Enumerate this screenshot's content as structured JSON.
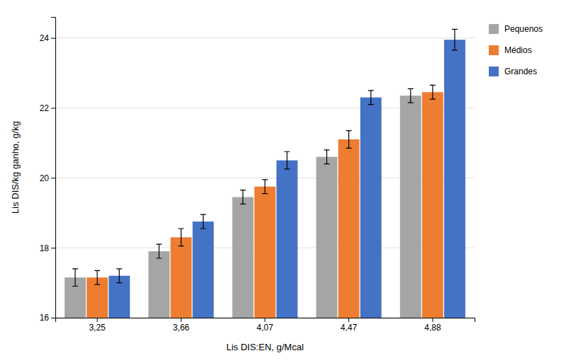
{
  "chart_data": {
    "type": "bar",
    "xlabel": "Lis DIS:EN, g/Mcal",
    "ylabel": "Lis DIS/kg ganho, g/kg",
    "categories": [
      "3,25",
      "3,66",
      "4,07",
      "4,47",
      "4,88"
    ],
    "series": [
      {
        "name": "Pequenos",
        "color": "#a5a5a5",
        "values": [
          17.15,
          17.9,
          19.45,
          20.6,
          22.35
        ],
        "errors": [
          0.25,
          0.2,
          0.2,
          0.2,
          0.2
        ]
      },
      {
        "name": "Médios",
        "color": "#ed7d31",
        "values": [
          17.15,
          18.3,
          19.75,
          21.1,
          22.45
        ],
        "errors": [
          0.2,
          0.25,
          0.2,
          0.25,
          0.2
        ]
      },
      {
        "name": "Grandes",
        "color": "#4472c4",
        "values": [
          17.2,
          18.75,
          20.5,
          22.3,
          23.95
        ],
        "errors": [
          0.2,
          0.2,
          0.25,
          0.2,
          0.3
        ]
      }
    ],
    "ylim": [
      16,
      24.6
    ],
    "yticks": [
      16,
      18,
      20,
      22,
      24
    ],
    "grid": true,
    "legend": "right"
  }
}
